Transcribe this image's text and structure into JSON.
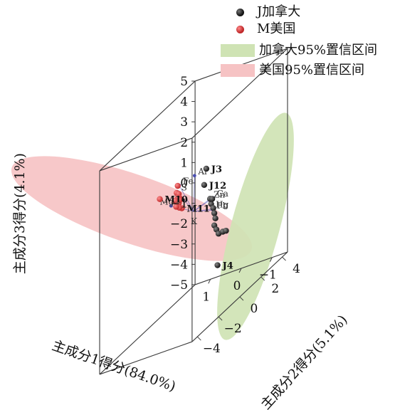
{
  "colors": {
    "J": "#141414",
    "M": "#c0282a",
    "ellipse_J": "#cfe3b4",
    "ellipse_M": "#f6c3c4",
    "loading": "#4b4fb0"
  },
  "chart_data": {
    "type": "scatter",
    "dimensions": 3,
    "title": "",
    "xlabel": "主成分1得分(84.0%)",
    "ylabel": "主成分2得分(5.1%)",
    "zlabel": "主成分3得分(4.1%)",
    "xlim": [
      -1.5,
      1.5
    ],
    "ylim": [
      -4.5,
      4.5
    ],
    "zlim": [
      -5,
      5
    ],
    "x_ticks": [
      "1",
      "0",
      "−1"
    ],
    "y_ticks": [
      "−4",
      "−2",
      "0",
      "2",
      "4"
    ],
    "z_ticks": [
      "5",
      "4",
      "3",
      "2",
      "1",
      "0",
      "−1",
      "−2",
      "−3",
      "−4",
      "−5"
    ],
    "legend": {
      "placement": "top-right",
      "entries": [
        {
          "key": "J",
          "label": "J加拿大",
          "kind": "point"
        },
        {
          "key": "M",
          "label": "M美国",
          "kind": "point"
        },
        {
          "key": "ellipse_J",
          "label": "加拿大95%置信区间",
          "kind": "region"
        },
        {
          "key": "ellipse_M",
          "label": "美国95%置信区间",
          "kind": "region"
        }
      ]
    },
    "series": [
      {
        "name": "J加拿大",
        "key": "J",
        "points": [
          {
            "label": "J3",
            "x": -0.55,
            "y": -0.4,
            "z": 2.0
          },
          {
            "label": "J12",
            "x": -0.55,
            "y": -0.6,
            "z": 1.3
          },
          {
            "label": "",
            "x": -0.5,
            "y": 0.2,
            "z": 0.0
          },
          {
            "label": "",
            "x": -0.5,
            "y": 0.4,
            "z": -0.3
          },
          {
            "label": "",
            "x": -0.5,
            "y": 0.5,
            "z": -0.6
          },
          {
            "label": "",
            "x": -0.5,
            "y": 0.6,
            "z": -0.9
          },
          {
            "label": "",
            "x": -0.5,
            "y": 0.5,
            "z": -1.2
          },
          {
            "label": "",
            "x": -0.5,
            "y": 0.7,
            "z": -1.5
          },
          {
            "label": "",
            "x": -0.5,
            "y": 0.9,
            "z": -1.8
          },
          {
            "label": "",
            "x": -0.5,
            "y": 1.3,
            "z": -1.9
          },
          {
            "label": "",
            "x": -0.5,
            "y": 1.6,
            "z": -2.0
          },
          {
            "label": "J4",
            "x": -0.5,
            "y": 0.8,
            "z": -3.3
          },
          {
            "label": "",
            "x": -0.5,
            "y": 0.1,
            "z": 0.3
          },
          {
            "label": "",
            "x": -0.5,
            "y": 0.3,
            "z": 0.2
          }
        ]
      },
      {
        "name": "M美国",
        "key": "M",
        "points": [
          {
            "label": "M10",
            "x": 1.2,
            "y": 0.3,
            "z": 1.1
          },
          {
            "label": "M11",
            "x": 0.45,
            "y": 0.2,
            "z": 0.3
          },
          {
            "label": "",
            "x": 0.55,
            "y": 0.1,
            "z": 1.5
          },
          {
            "label": "",
            "x": 0.55,
            "y": 0.0,
            "z": 1.2
          },
          {
            "label": "",
            "x": 0.5,
            "y": 0.05,
            "z": 1.1
          },
          {
            "label": "",
            "x": 0.45,
            "y": -0.05,
            "z": 0.95
          },
          {
            "label": "",
            "x": 0.55,
            "y": 0.1,
            "z": 0.9
          },
          {
            "label": "",
            "x": 0.6,
            "y": 0.0,
            "z": 0.85
          },
          {
            "label": "",
            "x": 0.5,
            "y": 0.15,
            "z": 0.75
          },
          {
            "label": "",
            "x": 0.55,
            "y": 0.2,
            "z": 0.6
          },
          {
            "label": "",
            "x": 0.5,
            "y": 0.1,
            "z": 0.4
          },
          {
            "label": "",
            "x": 0.6,
            "y": 0.1,
            "z": 0.5
          }
        ]
      }
    ],
    "loadings": [
      {
        "label": "Al",
        "x": -0.1,
        "y": -0.2,
        "z": 1.8
      },
      {
        "label": "Mg",
        "x": 0.8,
        "y": 0.2,
        "z": 0.6
      },
      {
        "label": "K",
        "x": 0.0,
        "y": 0.0,
        "z": 0.0
      },
      {
        "label": "Ca",
        "x": -0.5,
        "y": 0.4,
        "z": 0.2
      },
      {
        "label": "Zn",
        "x": -0.5,
        "y": 0.1,
        "z": 0.3
      },
      {
        "label": "Hg",
        "x": -0.5,
        "y": 0.3,
        "z": -0.3
      },
      {
        "label": "Pb",
        "x": -0.5,
        "y": 0.4,
        "z": -0.4
      },
      {
        "label": "Fe",
        "x": 0.5,
        "y": 0.1,
        "z": 1.5
      },
      {
        "label": "S",
        "x": 0.55,
        "y": 0.1,
        "z": 1.2
      }
    ]
  }
}
